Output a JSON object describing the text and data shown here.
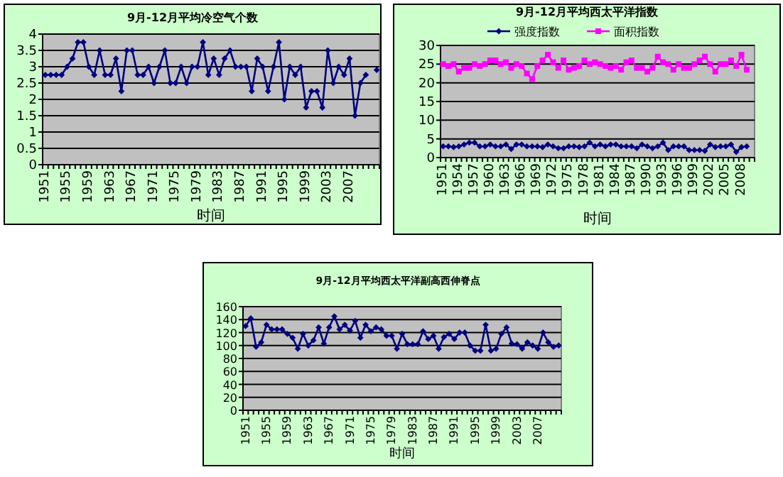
{
  "chart_data": [
    {
      "type": "line",
      "title": "9月-12月平均冷空气个数",
      "xlabel": "时间",
      "ylim": [
        0,
        4
      ],
      "yticks": [
        0,
        0.5,
        1,
        1.5,
        2,
        2.5,
        3,
        3.5,
        4
      ],
      "grid": "y",
      "legend": false,
      "marker": "diamond",
      "categories": [
        "1951",
        null,
        null,
        null,
        "1955",
        null,
        null,
        null,
        "1959",
        null,
        null,
        null,
        "1963",
        null,
        null,
        null,
        "1967",
        null,
        null,
        null,
        "1971",
        null,
        null,
        null,
        "1975",
        null,
        null,
        null,
        "1979",
        null,
        null,
        null,
        "1983",
        null,
        null,
        null,
        "1987",
        null,
        null,
        null,
        "1991",
        null,
        null,
        null,
        "1995",
        null,
        null,
        null,
        "1999",
        null,
        null,
        null,
        "2003",
        null,
        null,
        null,
        "2007",
        null,
        null,
        null,
        null,
        null
      ],
      "series": [
        {
          "color": "#000080",
          "values": [
            2.75,
            2.75,
            2.75,
            2.75,
            3.0,
            3.25,
            3.75,
            3.75,
            3.0,
            2.75,
            3.5,
            2.75,
            2.75,
            3.25,
            2.25,
            3.5,
            3.5,
            2.75,
            2.75,
            3.0,
            2.5,
            3.0,
            3.5,
            2.5,
            2.5,
            3.0,
            2.5,
            3.0,
            3.0,
            3.75,
            2.75,
            3.25,
            2.75,
            3.25,
            3.5,
            3.0,
            3.0,
            3.0,
            2.25,
            3.25,
            3.0,
            2.25,
            3.0,
            3.75,
            2.0,
            3.0,
            2.75,
            3.0,
            1.75,
            2.25,
            2.25,
            1.75,
            3.5,
            2.5,
            3.0,
            2.75,
            3.25,
            1.5,
            2.5,
            2.75,
            null,
            2.9
          ]
        }
      ]
    },
    {
      "type": "line",
      "title": "9月-12月平均西太平洋指数",
      "xlabel": "时间",
      "ylim": [
        0,
        30
      ],
      "yticks": [
        0,
        5,
        10,
        15,
        20,
        25,
        30
      ],
      "grid": "y",
      "legend": "top",
      "categories": [
        "1951",
        null,
        null,
        "1954",
        null,
        null,
        "1957",
        null,
        null,
        "1960",
        null,
        null,
        "1963",
        null,
        null,
        "1966",
        null,
        null,
        "1969",
        null,
        null,
        "1972",
        null,
        null,
        "1975",
        null,
        null,
        "1978",
        null,
        null,
        "1981",
        null,
        null,
        "1984",
        null,
        null,
        "1987",
        null,
        null,
        "1990",
        null,
        null,
        "1993",
        null,
        null,
        "1996",
        null,
        null,
        "1999",
        null,
        null,
        "2002",
        null,
        null,
        "2005",
        null,
        null,
        "2008",
        null,
        null
      ],
      "series": [
        {
          "name": "强度指数",
          "color": "#000080",
          "marker": "diamond",
          "values": [
            3,
            3,
            2.8,
            3,
            3.5,
            4,
            4,
            3,
            3,
            3.5,
            3,
            3,
            3.5,
            2.3,
            3.5,
            3.5,
            3,
            3,
            3,
            2.8,
            3.5,
            3,
            2.5,
            2.5,
            3,
            3,
            2.8,
            3,
            4,
            3,
            3.5,
            3,
            3.5,
            3.5,
            3,
            3,
            3,
            2.5,
            3.5,
            3,
            2.5,
            3,
            4,
            2,
            3,
            3,
            3,
            2,
            2,
            2,
            1.8,
            3.5,
            2.8,
            3,
            3,
            3.5,
            1.5,
            2.8,
            3,
            null
          ]
        },
        {
          "name": "面积指数",
          "color": "#ff00ff",
          "marker": "square",
          "values": [
            25,
            24.5,
            25,
            23,
            24,
            24,
            25,
            24.5,
            25,
            26,
            26,
            25,
            25.5,
            24,
            25,
            24.5,
            22.5,
            21,
            24.5,
            26,
            27.5,
            25.5,
            24,
            26,
            23.5,
            24,
            24.5,
            26,
            25,
            25.5,
            25,
            24.5,
            24,
            24.5,
            23.5,
            25.5,
            26,
            24,
            24,
            23,
            24,
            27,
            25.5,
            25,
            23.5,
            25,
            24,
            24,
            25,
            26,
            27,
            25,
            23,
            25,
            25,
            26,
            24.5,
            27.5,
            23.5,
            null
          ]
        }
      ]
    },
    {
      "type": "line",
      "title": "9月-12月平均西太平洋副高西伸脊点",
      "xlabel": "时间",
      "ylim": [
        0,
        160
      ],
      "yticks": [
        0,
        20,
        40,
        60,
        80,
        100,
        120,
        140,
        160
      ],
      "grid": "y",
      "legend": false,
      "marker": "diamond",
      "categories": [
        "1951",
        null,
        null,
        null,
        "1955",
        null,
        null,
        null,
        "1959",
        null,
        null,
        null,
        "1963",
        null,
        null,
        null,
        "1967",
        null,
        null,
        null,
        "1971",
        null,
        null,
        null,
        "1975",
        null,
        null,
        null,
        "1979",
        null,
        null,
        null,
        "1983",
        null,
        null,
        null,
        "1987",
        null,
        null,
        null,
        "1991",
        null,
        null,
        null,
        "1995",
        null,
        null,
        null,
        "1999",
        null,
        null,
        null,
        "2003",
        null,
        null,
        null,
        "2007",
        null,
        null,
        null,
        null
      ],
      "series": [
        {
          "color": "#000080",
          "values": [
            130,
            142,
            98,
            105,
            132,
            125,
            125,
            125,
            118,
            112,
            95,
            118,
            100,
            108,
            128,
            103,
            128,
            145,
            125,
            132,
            123,
            138,
            112,
            132,
            122,
            128,
            125,
            115,
            115,
            95,
            118,
            102,
            102,
            102,
            122,
            110,
            115,
            95,
            113,
            118,
            110,
            120,
            120,
            100,
            92,
            92,
            132,
            92,
            95,
            118,
            128,
            103,
            102,
            95,
            105,
            100,
            95,
            120,
            105,
            98,
            100
          ]
        }
      ]
    }
  ]
}
